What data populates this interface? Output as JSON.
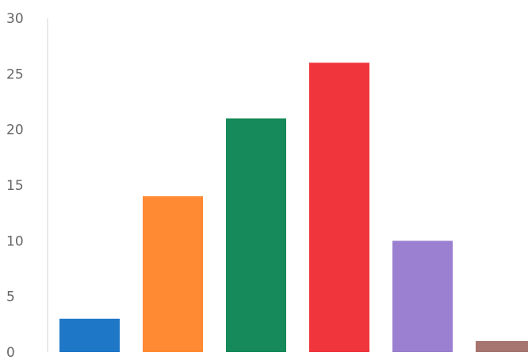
{
  "chart_data": {
    "type": "bar",
    "title": "",
    "xlabel": "",
    "ylabel": "",
    "categories": [
      "",
      "",
      "",
      "",
      "",
      ""
    ],
    "values": [
      3,
      14,
      21,
      26,
      10,
      1
    ],
    "colors": [
      "#1f77c8",
      "#ff8a33",
      "#168a5a",
      "#f0353c",
      "#9b7fd0",
      "#a7756f"
    ],
    "ylim": [
      0,
      30
    ],
    "yticks": [
      "0",
      "5",
      "10",
      "15",
      "20",
      "25",
      "30"
    ],
    "grid": false,
    "legend": "none"
  }
}
